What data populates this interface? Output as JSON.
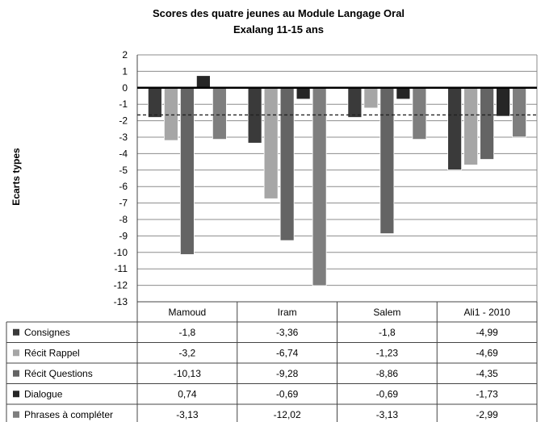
{
  "chart_data": {
    "type": "bar",
    "title": "Scores des quatre jeunes au Module Langage Oral",
    "subtitle": "Exalang 11-15 ans",
    "ylabel": "Ecarts types",
    "xlabel": "",
    "ylim": [
      -13,
      2
    ],
    "yticks": [
      2,
      1,
      0,
      -1,
      -2,
      -3,
      -4,
      -5,
      -6,
      -7,
      -8,
      -9,
      -10,
      -11,
      -12,
      -13
    ],
    "reference_line": -1.65,
    "grid": true,
    "legend": "data-table",
    "categories": [
      "Mamoud",
      "Iram",
      "Salem",
      "Ali1 - 2010"
    ],
    "series": [
      {
        "name": "Consignes",
        "color": "#3a3a3a",
        "values": [
          -1.8,
          -3.36,
          -1.8,
          -4.99
        ],
        "labels": [
          "-1,8",
          "-3,36",
          "-1,8",
          "-4,99"
        ]
      },
      {
        "name": "Récit Rappel",
        "color": "#a6a6a6",
        "values": [
          -3.2,
          -6.74,
          -1.23,
          -4.69
        ],
        "labels": [
          "-3,2",
          "-6,74",
          "-1,23",
          "-4,69"
        ]
      },
      {
        "name": "Récit Questions",
        "color": "#646464",
        "values": [
          -10.13,
          -9.28,
          -8.86,
          -4.35
        ],
        "labels": [
          "-10,13",
          "-9,28",
          "-8,86",
          "-4,35"
        ]
      },
      {
        "name": "Dialogue",
        "color": "#262626",
        "values": [
          0.74,
          -0.69,
          -0.69,
          -1.73
        ],
        "labels": [
          "0,74",
          "-0,69",
          "-0,69",
          "-1,73"
        ]
      },
      {
        "name": "Phrases à compléter",
        "color": "#7e7e7e",
        "values": [
          -3.13,
          -12.02,
          -3.13,
          -2.99
        ],
        "labels": [
          "-3,13",
          "-12,02",
          "-3,13",
          "-2,99"
        ]
      }
    ]
  }
}
